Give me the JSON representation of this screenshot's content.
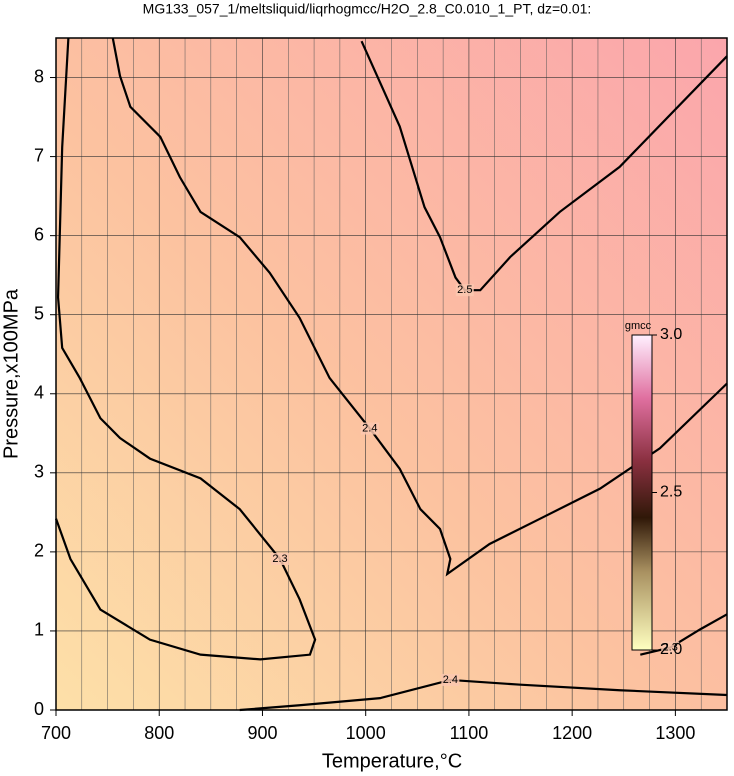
{
  "chart_data": {
    "type": "contour",
    "title": "MG133_057_1/meltsliquid/liqrhogmcc/H2O_2.8_C0.010_1_PT, dz=0.01:",
    "xlabel": "Temperature,°C",
    "ylabel": "Pressure,x100MPa",
    "xlim": [
      700,
      1350
    ],
    "ylim": [
      0,
      8.5
    ],
    "xticks": [
      700,
      800,
      900,
      1000,
      1100,
      1200,
      1300
    ],
    "yticks": [
      0,
      1,
      2,
      3,
      4,
      5,
      6,
      7,
      8
    ],
    "xgrid": [
      725,
      750,
      775,
      825,
      850,
      875,
      925,
      950,
      975,
      1025,
      1050,
      1075,
      1125,
      1150,
      1175,
      1225,
      1250,
      1275,
      1325
    ],
    "grid": true,
    "line_color": "#000000",
    "contours": [
      {
        "level": 2.5,
        "points": [
          [
            996,
            8.46
          ],
          [
            1033,
            7.38
          ],
          [
            1057,
            6.36
          ],
          [
            1072,
            5.98
          ],
          [
            1087,
            5.47
          ],
          [
            1096,
            5.31
          ],
          [
            1111,
            5.31
          ],
          [
            1140,
            5.73
          ],
          [
            1188,
            6.3
          ],
          [
            1246,
            6.87
          ],
          [
            1350,
            8.27
          ]
        ]
      },
      {
        "level": 2.4,
        "points": [
          [
            755,
            8.5
          ],
          [
            762,
            8.02
          ],
          [
            772,
            7.63
          ],
          [
            801,
            7.25
          ],
          [
            820,
            6.74
          ],
          [
            840,
            6.3
          ],
          [
            878,
            5.98
          ],
          [
            907,
            5.53
          ],
          [
            936,
            4.96
          ],
          [
            965,
            4.2
          ],
          [
            1004,
            3.56
          ],
          [
            1033,
            3.05
          ],
          [
            1053,
            2.54
          ],
          [
            1072,
            2.29
          ],
          [
            1082,
            1.91
          ],
          [
            1079,
            1.72
          ],
          [
            1120,
            2.1
          ],
          [
            1169,
            2.42
          ],
          [
            1227,
            2.8
          ],
          [
            1285,
            3.31
          ],
          [
            1350,
            4.13
          ]
        ]
      },
      {
        "level": 2.3,
        "points": [
          [
            712,
            8.5
          ],
          [
            706,
            7.12
          ],
          [
            702,
            5.22
          ],
          [
            706,
            4.58
          ],
          [
            723,
            4.2
          ],
          [
            743,
            3.69
          ],
          [
            762,
            3.44
          ],
          [
            791,
            3.18
          ],
          [
            840,
            2.93
          ],
          [
            878,
            2.54
          ],
          [
            917,
            1.91
          ],
          [
            936,
            1.4
          ],
          [
            951,
            0.89
          ],
          [
            946,
            0.7
          ],
          [
            898,
            0.64
          ],
          [
            840,
            0.7
          ],
          [
            791,
            0.89
          ],
          [
            743,
            1.27
          ],
          [
            714,
            1.91
          ],
          [
            700,
            2.42
          ]
        ]
      },
      {
        "level": 2.4,
        "points": [
          [
            878,
            0
          ],
          [
            936,
            0.06
          ],
          [
            1014,
            0.15
          ],
          [
            1082,
            0.38
          ],
          [
            1150,
            0.32
          ],
          [
            1246,
            0.25
          ],
          [
            1350,
            0.19
          ]
        ]
      },
      {
        "level": 2.3,
        "points": [
          [
            1350,
            1.21
          ],
          [
            1324,
            1.02
          ],
          [
            1295,
            0.79
          ],
          [
            1266,
            0.7
          ]
        ]
      }
    ],
    "colorbar": {
      "label": "gmcc",
      "clim": [
        2,
        3
      ],
      "ticks": [
        {
          "value": 2,
          "label": "2.0"
        },
        2.5,
        {
          "value": 3,
          "label": "3.0"
        }
      ]
    }
  }
}
